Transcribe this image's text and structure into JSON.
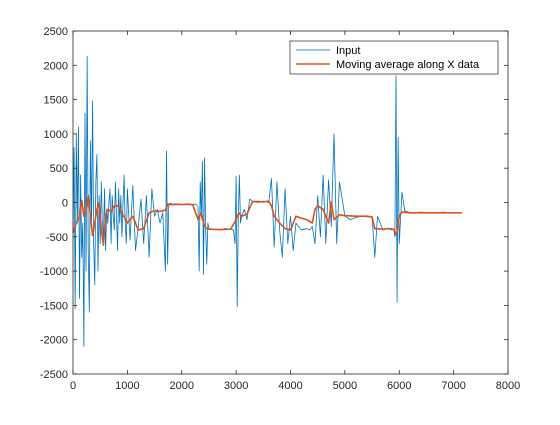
{
  "chart_data": {
    "type": "line",
    "title": "",
    "xlabel": "",
    "ylabel": "",
    "xlim": [
      0,
      8000
    ],
    "ylim": [
      -2500,
      2500
    ],
    "xticks": [
      0,
      1000,
      2000,
      3000,
      4000,
      5000,
      6000,
      7000,
      8000
    ],
    "yticks": [
      -2500,
      -2000,
      -1500,
      -1000,
      -500,
      0,
      500,
      1000,
      1500,
      2000,
      2500
    ],
    "xtick_labels": [
      "0",
      "1000",
      "2000",
      "3000",
      "4000",
      "5000",
      "6000",
      "7000",
      "8000"
    ],
    "ytick_labels": [
      "-2500",
      "-2000",
      "-1500",
      "-1000",
      "-500",
      "0",
      "500",
      "1000",
      "1500",
      "2000",
      "2500"
    ],
    "grid": false,
    "legend_location": "top-right",
    "series": [
      {
        "name": "Input",
        "color": "#0072BD",
        "x": [
          0,
          20,
          40,
          60,
          80,
          100,
          120,
          140,
          160,
          180,
          200,
          220,
          240,
          260,
          280,
          300,
          320,
          340,
          360,
          380,
          400,
          420,
          440,
          460,
          480,
          500,
          520,
          540,
          560,
          580,
          600,
          620,
          640,
          660,
          680,
          700,
          720,
          740,
          760,
          780,
          800,
          820,
          840,
          860,
          880,
          900,
          920,
          940,
          960,
          980,
          1000,
          1050,
          1100,
          1150,
          1200,
          1250,
          1300,
          1350,
          1400,
          1450,
          1500,
          1550,
          1600,
          1650,
          1700,
          1720,
          1740,
          1760,
          1780,
          1800,
          1850,
          1900,
          2000,
          2100,
          2200,
          2250,
          2300,
          2320,
          2340,
          2360,
          2380,
          2400,
          2420,
          2440,
          2460,
          2480,
          2500,
          2600,
          2700,
          2800,
          2900,
          2950,
          2980,
          3000,
          3020,
          3040,
          3060,
          3080,
          3100,
          3150,
          3200,
          3250,
          3300,
          3350,
          3400,
          3500,
          3600,
          3650,
          3700,
          3750,
          3800,
          3850,
          3900,
          3950,
          4000,
          4050,
          4100,
          4200,
          4300,
          4350,
          4400,
          4450,
          4500,
          4550,
          4600,
          4650,
          4700,
          4750,
          4800,
          4850,
          4900,
          5000,
          5100,
          5200,
          5300,
          5400,
          5500,
          5550,
          5600,
          5700,
          5800,
          5850,
          5900,
          5920,
          5940,
          5960,
          5980,
          6000,
          6050,
          6100,
          6200,
          6400,
          6600,
          6800,
          7000,
          7150
        ],
        "y": [
          -400,
          800,
          -1550,
          1000,
          -300,
          1100,
          -1400,
          400,
          -800,
          -300,
          -2100,
          1300,
          -1000,
          2130,
          -700,
          -1600,
          900,
          -300,
          1480,
          -600,
          -1200,
          300,
          700,
          -1000,
          100,
          -600,
          300,
          -300,
          -500,
          200,
          -700,
          -100,
          -300,
          0,
          200,
          -600,
          100,
          -200,
          -400,
          300,
          -200,
          -700,
          200,
          -300,
          100,
          -500,
          0,
          400,
          -300,
          -600,
          200,
          -550,
          250,
          -700,
          -350,
          50,
          -600,
          100,
          -800,
          200,
          -200,
          -100,
          -300,
          -150,
          -1000,
          750,
          -900,
          -50,
          -30,
          -10,
          -40,
          -20,
          -30,
          -20,
          -40,
          -20,
          -60,
          -1000,
          300,
          -200,
          600,
          -1050,
          650,
          -400,
          -900,
          -300,
          -380,
          -390,
          -400,
          -380,
          -390,
          -400,
          -600,
          380,
          -1520,
          -200,
          400,
          -300,
          -200,
          -100,
          -250,
          50,
          20,
          10,
          0,
          20,
          0,
          350,
          -650,
          300,
          -400,
          -800,
          200,
          -600,
          -200,
          -700,
          -300,
          -400,
          -380,
          -400,
          -350,
          -600,
          100,
          -500,
          400,
          -600,
          330,
          -350,
          1000,
          -600,
          300,
          -200,
          -250,
          -220,
          -200,
          -210,
          -200,
          -800,
          -200,
          -400,
          -380,
          -400,
          -390,
          -500,
          1850,
          -1450,
          950,
          -600,
          150,
          -120,
          -150,
          -140,
          -150,
          -140,
          -150,
          -150
        ],
        "x_range_note": null
      },
      {
        "name": "Moving average along X data",
        "color": "#D95319",
        "x": [
          0,
          60,
          120,
          160,
          200,
          240,
          280,
          320,
          360,
          400,
          440,
          480,
          520,
          560,
          600,
          640,
          700,
          760,
          800,
          850,
          900,
          1000,
          1100,
          1200,
          1300,
          1400,
          1500,
          1600,
          1700,
          1750,
          1800,
          1900,
          2000,
          2100,
          2200,
          2300,
          2350,
          2400,
          2450,
          2500,
          2700,
          2900,
          3000,
          3050,
          3100,
          3200,
          3300,
          3350,
          3500,
          3600,
          3650,
          3700,
          3800,
          3900,
          4000,
          4100,
          4200,
          4300,
          4400,
          4450,
          4500,
          4600,
          4700,
          4750,
          4800,
          4900,
          5000,
          5200,
          5400,
          5500,
          5550,
          5700,
          5800,
          5900,
          5950,
          6000,
          6050,
          6200,
          6400,
          6600,
          6800,
          7000,
          7150
        ],
        "y": [
          -440,
          -300,
          -200,
          30,
          -200,
          -100,
          100,
          -200,
          -480,
          -300,
          -100,
          0,
          -400,
          -620,
          -200,
          -100,
          -130,
          -50,
          -40,
          -70,
          -150,
          -300,
          -200,
          -400,
          -380,
          -150,
          -120,
          -130,
          -110,
          -20,
          -30,
          -25,
          -30,
          -25,
          -30,
          -250,
          -150,
          -300,
          -380,
          -390,
          -395,
          -390,
          -250,
          -150,
          -200,
          -170,
          10,
          15,
          10,
          20,
          -50,
          -200,
          -300,
          -380,
          -400,
          -200,
          -230,
          -250,
          -300,
          -100,
          -50,
          -100,
          -300,
          10,
          -250,
          -180,
          -190,
          -200,
          -200,
          -210,
          -380,
          -390,
          -380,
          -390,
          -480,
          -200,
          -140,
          -150,
          -150,
          -150,
          -150,
          -150,
          -150
        ]
      }
    ]
  }
}
